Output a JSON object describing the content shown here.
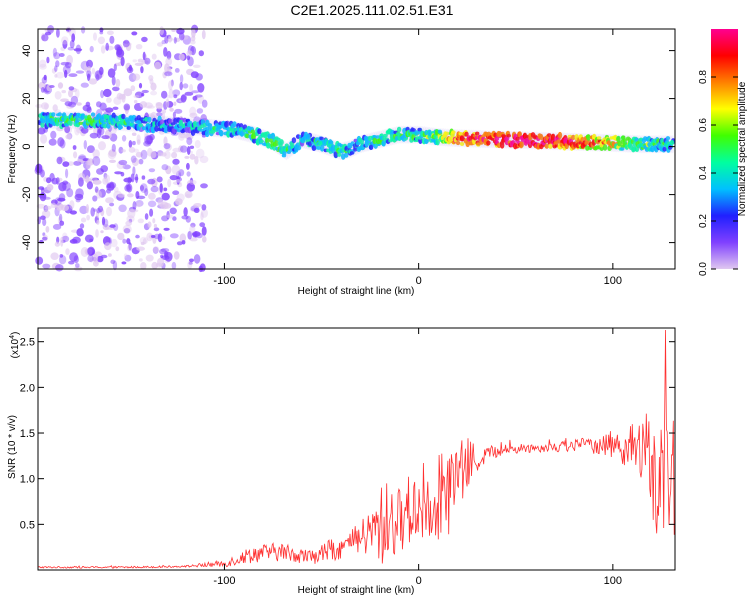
{
  "title": "C2E1.2025.111.02.51.E31",
  "chart_data": [
    {
      "type": "heatmap",
      "name": "spectrogram",
      "xlabel": "Height of straight line (km)",
      "ylabel": "Frequency (Hz)",
      "xlim": [
        -196,
        132
      ],
      "ylim": [
        -51,
        49
      ],
      "xticks": [
        -100,
        0,
        100
      ],
      "xtick_labels": [
        "-100",
        "0",
        "100"
      ],
      "yticks": [
        -40,
        -20,
        0,
        20,
        40
      ],
      "ytick_labels": [
        "-40",
        "-20",
        "0",
        "20",
        "40"
      ],
      "colorbar": {
        "label": "Normalized spectral amplitude",
        "range": [
          0,
          1
        ],
        "ticks": [
          0,
          0.2,
          0.4,
          0.6,
          0.8
        ],
        "tick_labels": [
          "0.0",
          "0.2",
          "0.4",
          "0.6",
          "0.8"
        ],
        "colormap": [
          "#e0c8f0",
          "#8040ff",
          "#2020ff",
          "#00c0ff",
          "#00ffa0",
          "#40ff00",
          "#ffff00",
          "#ff8000",
          "#ff0000",
          "#ff0090"
        ]
      },
      "ridge": {
        "x": [
          -192,
          -170,
          -150,
          -130,
          -110,
          -95,
          -85,
          -75,
          -68,
          -60,
          -50,
          -40,
          -35,
          -30,
          -20,
          -10,
          0,
          10,
          20,
          40,
          60,
          80,
          100,
          115,
          130
        ],
        "freq": [
          11,
          11,
          10,
          9,
          8,
          7,
          5,
          2,
          -2,
          3,
          1,
          -2,
          -1,
          1,
          3,
          5,
          5,
          4,
          3.5,
          3,
          2.5,
          2,
          1.5,
          1,
          1
        ],
        "amplitude": [
          0.45,
          0.5,
          0.45,
          0.35,
          0.4,
          0.45,
          0.5,
          0.55,
          0.5,
          0.4,
          0.45,
          0.5,
          0.4,
          0.4,
          0.45,
          0.5,
          0.5,
          0.55,
          0.85,
          0.9,
          0.95,
          0.85,
          0.7,
          0.5,
          0.45
        ]
      }
    },
    {
      "type": "line",
      "name": "snr",
      "xlabel": "Height of straight line (km)",
      "ylabel": "SNR (10 * v/v)",
      "y_multiplier": "(x10",
      "y_multiplier_exp": "4",
      "xlim": [
        -196,
        132
      ],
      "ylim": [
        0,
        2.65
      ],
      "xticks": [
        -100,
        0,
        100
      ],
      "xtick_labels": [
        "-100",
        "0",
        "100"
      ],
      "yticks": [
        0.5,
        1.0,
        1.5,
        2.0,
        2.5
      ],
      "ytick_labels": [
        "0.5",
        "1.0",
        "1.5",
        "2.0",
        "2.5"
      ],
      "color": "#ff3030",
      "envelope": {
        "x": [
          -196,
          -150,
          -120,
          -100,
          -85,
          -70,
          -55,
          -45,
          -35,
          -25,
          -18,
          -10,
          -5,
          5,
          15,
          25,
          35,
          45,
          60,
          80,
          95,
          105,
          115,
          120,
          126,
          132
        ],
        "mean": [
          0.03,
          0.03,
          0.04,
          0.07,
          0.18,
          0.2,
          0.14,
          0.22,
          0.28,
          0.4,
          0.5,
          0.55,
          0.65,
          0.75,
          0.85,
          1.15,
          1.28,
          1.32,
          1.34,
          1.36,
          1.38,
          1.36,
          1.3,
          1.1,
          0.9,
          1.1
        ],
        "spread": [
          0.01,
          0.01,
          0.01,
          0.04,
          0.1,
          0.1,
          0.08,
          0.12,
          0.15,
          0.25,
          0.5,
          0.35,
          0.4,
          0.45,
          0.5,
          0.3,
          0.08,
          0.06,
          0.05,
          0.07,
          0.12,
          0.2,
          0.35,
          0.7,
          0.8,
          0.7
        ]
      }
    }
  ]
}
